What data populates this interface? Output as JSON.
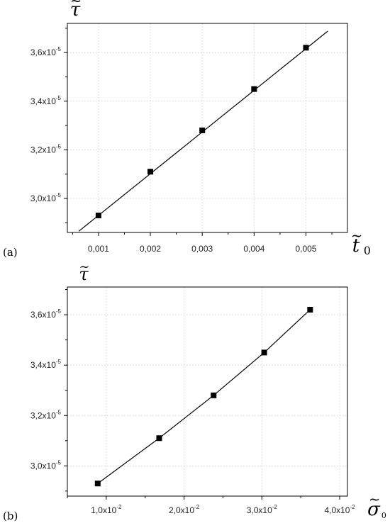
{
  "chart_data": [
    {
      "type": "scatter",
      "panel_label": "(a)",
      "x": [
        0.001,
        0.002,
        0.003,
        0.004,
        0.005
      ],
      "y": [
        2.93e-05,
        3.11e-05,
        3.28e-05,
        3.45e-05,
        3.62e-05
      ],
      "fit_line": {
        "x": [
          0.00062,
          0.00542
        ],
        "y": [
          2.865e-05,
          3.688e-05
        ]
      },
      "xlim": [
        0.0004,
        0.0058
      ],
      "ylim": [
        2.86e-05,
        3.72e-05
      ],
      "xticks": [
        0.001,
        0.002,
        0.003,
        0.004,
        0.005
      ],
      "xtick_labels": [
        "0,001",
        "0,002",
        "0,003",
        "0,004",
        "0,005"
      ],
      "yticks": [
        3e-05,
        3.2e-05,
        3.4e-05,
        3.6e-05
      ],
      "ytick_labels": [
        {
          "mantissa": "3,0x10",
          "exp": "-5"
        },
        {
          "mantissa": "3,2x10",
          "exp": "-5"
        },
        {
          "mantissa": "3,4x10",
          "exp": "-5"
        },
        {
          "mantissa": "3,6x10",
          "exp": "-5"
        }
      ],
      "xlabel": {
        "symbol": "t",
        "tilde": "~",
        "subscript": "0"
      },
      "ylabel": {
        "symbol": "τ",
        "tilde": "~"
      },
      "grid": true,
      "marker": "square"
    },
    {
      "type": "scatter",
      "panel_label": "(b)",
      "x": [
        0.0089,
        0.0168,
        0.0238,
        0.0303,
        0.0362
      ],
      "y": [
        2.93e-05,
        3.11e-05,
        3.28e-05,
        3.45e-05,
        3.62e-05
      ],
      "fit_x": [
        0.0089,
        0.0168,
        0.0238,
        0.0303,
        0.0362
      ],
      "fit_y": [
        2.93e-05,
        3.11e-05,
        3.28e-05,
        3.45e-05,
        3.62e-05
      ],
      "xlim": [
        0.005,
        0.041
      ],
      "ylim": [
        2.88e-05,
        3.71e-05
      ],
      "xticks": [
        0.01,
        0.02,
        0.03,
        0.04
      ],
      "xtick_labels": [
        {
          "mantissa": "1,0x10",
          "exp": "-2"
        },
        {
          "mantissa": "2,0x10",
          "exp": "-2"
        },
        {
          "mantissa": "3,0x10",
          "exp": "-2"
        },
        {
          "mantissa": "4,0x10",
          "exp": "-2"
        }
      ],
      "yticks": [
        3e-05,
        3.2e-05,
        3.4e-05,
        3.6e-05
      ],
      "ytick_labels": [
        {
          "mantissa": "3,0x10",
          "exp": "-5"
        },
        {
          "mantissa": "3,2x10",
          "exp": "-5"
        },
        {
          "mantissa": "3,4x10",
          "exp": "-5"
        },
        {
          "mantissa": "3,6x10",
          "exp": "-5"
        }
      ],
      "xlabel": {
        "symbol": "σ",
        "tilde": "~",
        "subscript": "0"
      },
      "ylabel": {
        "symbol": "τ",
        "tilde": "~"
      },
      "grid": true,
      "marker": "square"
    }
  ]
}
